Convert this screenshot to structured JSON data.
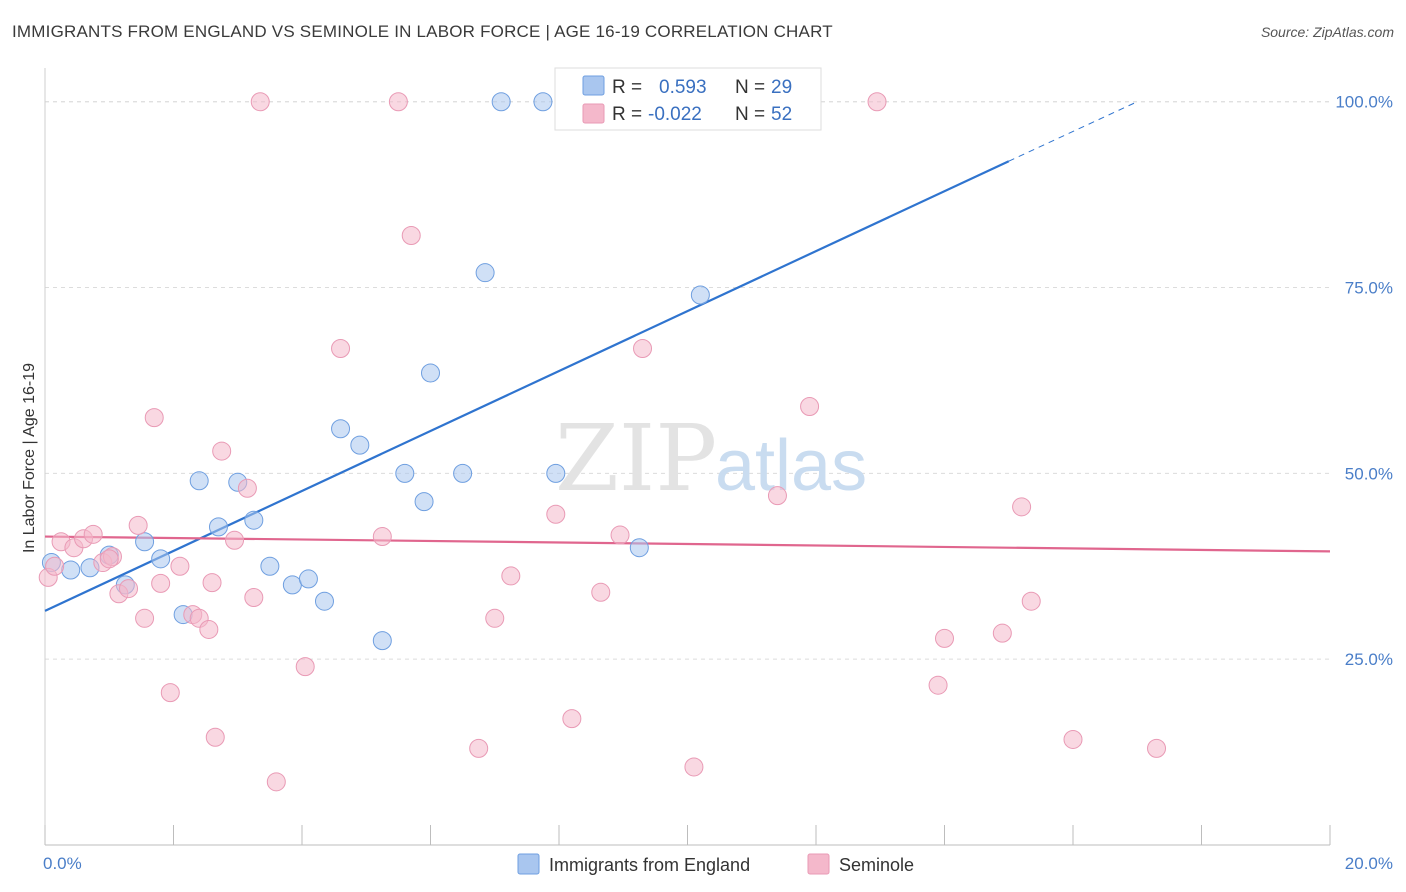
{
  "title": "IMMIGRANTS FROM ENGLAND VS SEMINOLE IN LABOR FORCE | AGE 16-19 CORRELATION CHART",
  "source": "Source: ZipAtlas.com",
  "watermark": {
    "zip": "ZIP",
    "atlas": "atlas"
  },
  "legend": {
    "rows": [
      {
        "r_label": "R = ",
        "r_value": "0.593",
        "n_label": "N = ",
        "n_value": "29",
        "color": "#a9c6ef"
      },
      {
        "r_label": "R = ",
        "r_value": "-0.022",
        "n_label": "N = ",
        "n_value": "52",
        "color": "#f4b8cb"
      }
    ]
  },
  "bottom_legend": [
    {
      "label": "Immigrants from England",
      "color": "#a9c6ef"
    },
    {
      "label": "Seminole",
      "color": "#f4b8cb"
    }
  ],
  "chart_data": {
    "type": "scatter",
    "title": "IMMIGRANTS FROM ENGLAND VS SEMINOLE IN LABOR FORCE | AGE 16-19 CORRELATION CHART",
    "xlabel": "",
    "ylabel": "In Labor Force | Age 16-19",
    "xlim": [
      0,
      20
    ],
    "ylim": [
      0,
      104
    ],
    "x_tick_labels": {
      "0": "0.0%",
      "20": "20.0%"
    },
    "y_ticks": [
      25,
      50,
      75,
      100
    ],
    "y_tick_labels": [
      "25.0%",
      "50.0%",
      "75.0%",
      "100.0%"
    ],
    "grid": true,
    "legend_position": "top-center",
    "series": [
      {
        "name": "Immigrants from England",
        "color": "#6f9fe0",
        "fill": "#a9c6ef",
        "trend": {
          "x0": 0,
          "y0": 31.5,
          "x1": 15.0,
          "y1": 92.0,
          "dashed_to_x": 17.0,
          "dashed_to_y": 100.0,
          "color": "#2f74cf"
        },
        "points": [
          [
            0.1,
            38.0
          ],
          [
            0.4,
            37.0
          ],
          [
            0.7,
            37.3
          ],
          [
            1.0,
            39.0
          ],
          [
            1.25,
            35.0
          ],
          [
            1.55,
            40.8
          ],
          [
            1.8,
            38.5
          ],
          [
            2.15,
            31.0
          ],
          [
            2.4,
            49.0
          ],
          [
            2.7,
            42.8
          ],
          [
            3.0,
            48.8
          ],
          [
            3.25,
            43.7
          ],
          [
            3.5,
            37.5
          ],
          [
            3.85,
            35.0
          ],
          [
            4.1,
            35.8
          ],
          [
            4.35,
            32.8
          ],
          [
            4.6,
            56.0
          ],
          [
            4.9,
            53.8
          ],
          [
            5.25,
            27.5
          ],
          [
            5.6,
            50.0
          ],
          [
            5.9,
            46.2
          ],
          [
            6.0,
            63.5
          ],
          [
            6.5,
            50.0
          ],
          [
            6.85,
            77.0
          ],
          [
            7.1,
            100.0
          ],
          [
            7.75,
            100.0
          ],
          [
            7.95,
            50.0
          ],
          [
            9.25,
            40.0
          ],
          [
            10.2,
            74.0
          ]
        ]
      },
      {
        "name": "Seminole",
        "color": "#e99ab5",
        "fill": "#f4b8cb",
        "trend": {
          "x0": 0,
          "y0": 41.5,
          "x1": 20.0,
          "y1": 39.5,
          "color": "#e0668e"
        },
        "points": [
          [
            0.05,
            36.0
          ],
          [
            0.25,
            40.8
          ],
          [
            0.45,
            40.0
          ],
          [
            0.6,
            41.2
          ],
          [
            0.75,
            41.8
          ],
          [
            0.9,
            38.0
          ],
          [
            1.05,
            38.8
          ],
          [
            1.15,
            33.8
          ],
          [
            1.3,
            34.5
          ],
          [
            1.45,
            43.0
          ],
          [
            1.55,
            30.5
          ],
          [
            1.7,
            57.5
          ],
          [
            1.8,
            35.2
          ],
          [
            1.95,
            20.5
          ],
          [
            2.1,
            37.5
          ],
          [
            2.3,
            31.0
          ],
          [
            2.4,
            30.5
          ],
          [
            2.55,
            29.0
          ],
          [
            2.6,
            35.3
          ],
          [
            2.65,
            14.5
          ],
          [
            2.75,
            53.0
          ],
          [
            2.95,
            41.0
          ],
          [
            3.15,
            48.0
          ],
          [
            3.25,
            33.3
          ],
          [
            3.35,
            100.0
          ],
          [
            3.6,
            8.5
          ],
          [
            4.05,
            24.0
          ],
          [
            4.6,
            66.8
          ],
          [
            5.25,
            41.5
          ],
          [
            5.5,
            100.0
          ],
          [
            5.7,
            82.0
          ],
          [
            6.75,
            13.0
          ],
          [
            7.0,
            30.5
          ],
          [
            7.25,
            36.2
          ],
          [
            7.95,
            44.5
          ],
          [
            8.2,
            17.0
          ],
          [
            8.65,
            34.0
          ],
          [
            8.95,
            41.7
          ],
          [
            9.3,
            66.8
          ],
          [
            10.1,
            10.5
          ],
          [
            11.4,
            47.0
          ],
          [
            11.9,
            59.0
          ],
          [
            12.95,
            100.0
          ],
          [
            13.9,
            21.5
          ],
          [
            14.0,
            27.8
          ],
          [
            14.9,
            28.5
          ],
          [
            15.2,
            45.5
          ],
          [
            15.35,
            32.8
          ],
          [
            16.0,
            14.2
          ],
          [
            17.3,
            13.0
          ],
          [
            0.15,
            37.5
          ],
          [
            1.0,
            38.5
          ]
        ]
      }
    ]
  }
}
